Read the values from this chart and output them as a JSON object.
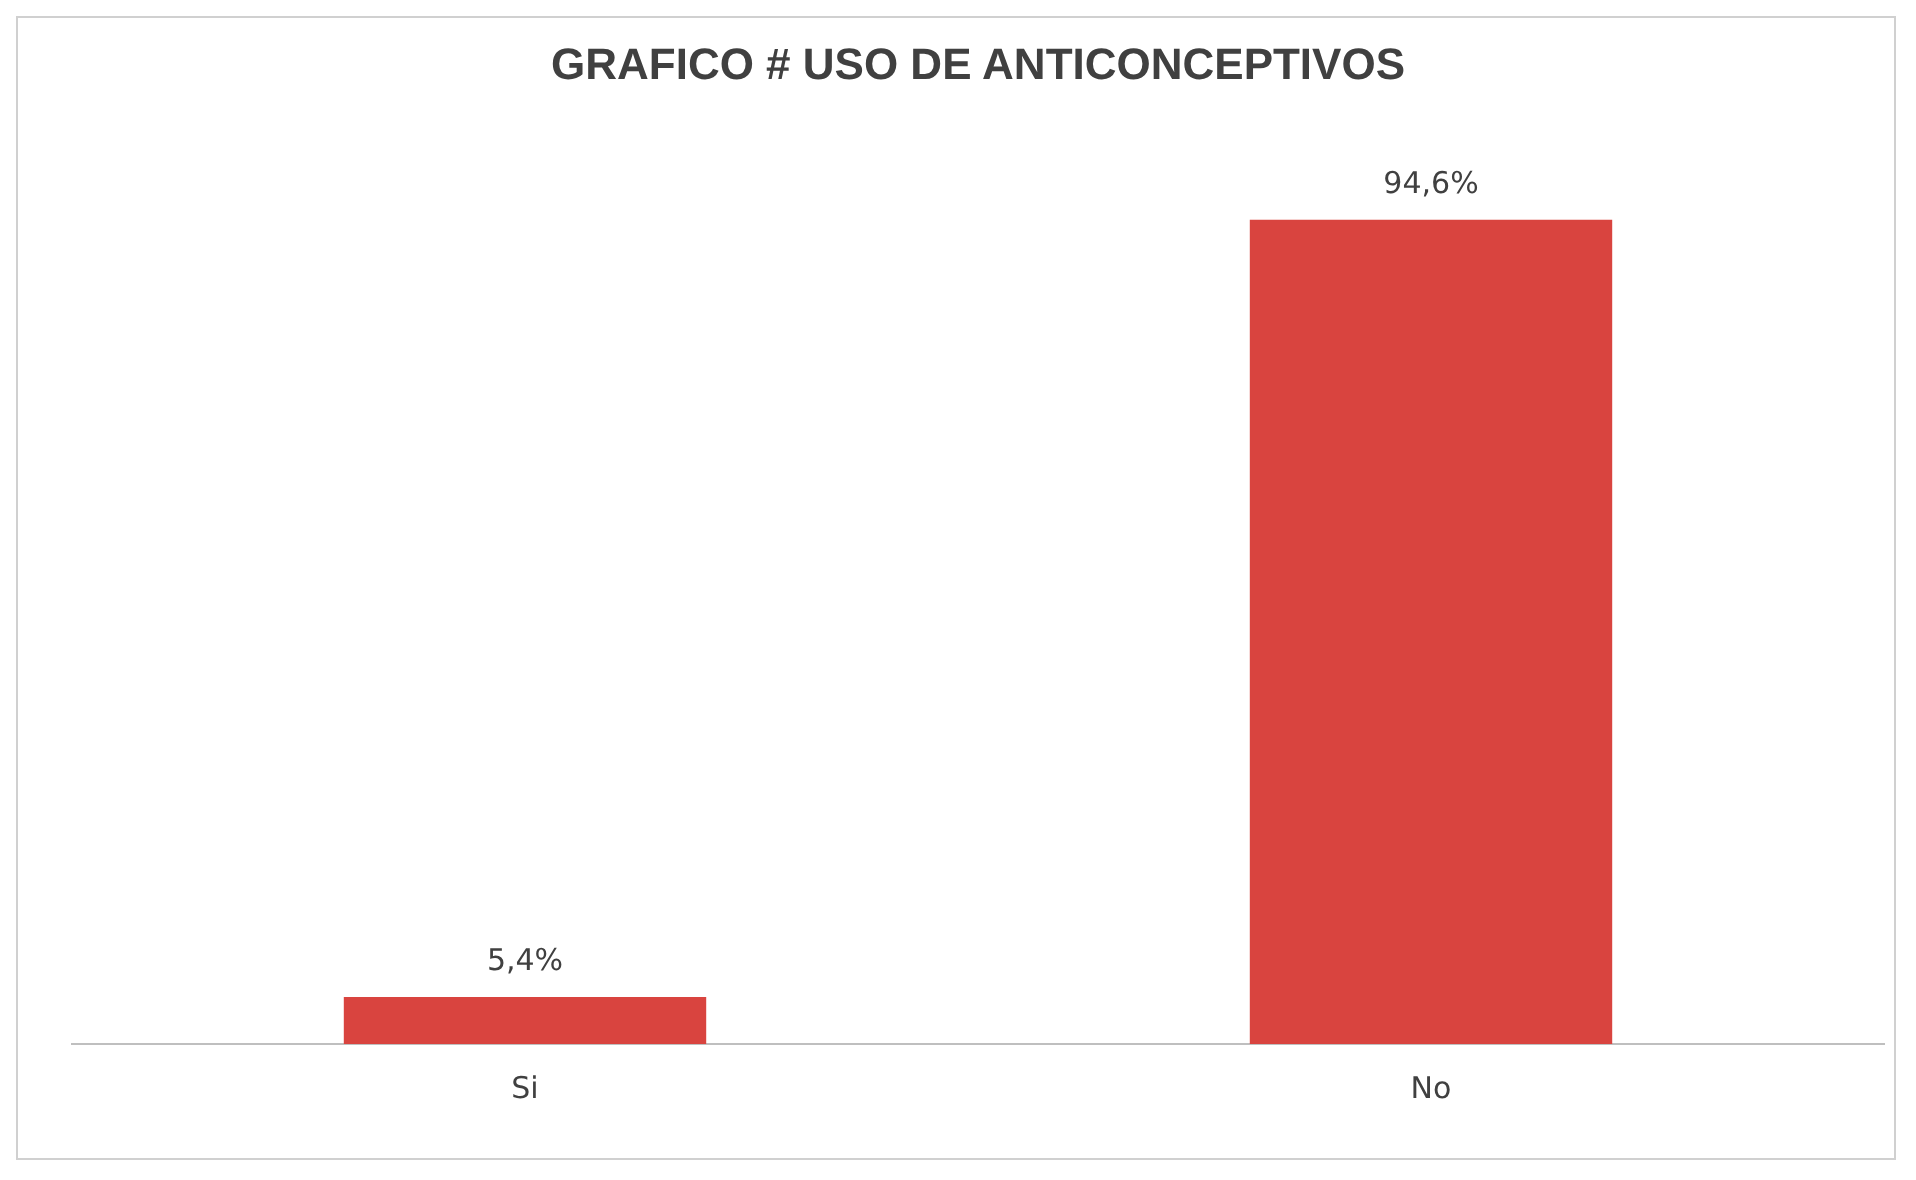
{
  "chart_data": {
    "type": "bar",
    "title": "GRAFICO # USO DE ANTICONCEPTIVOS",
    "categories": [
      "Si",
      "No"
    ],
    "values": [
      5.4,
      94.6
    ],
    "color": "#d9443f",
    "value_labels": [
      "5,4%",
      "94,6%"
    ],
    "grid": false,
    "legend": false
  }
}
